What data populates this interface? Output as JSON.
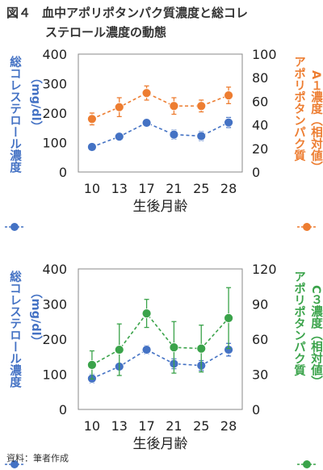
{
  "figure": {
    "number": "図４",
    "title_line1": "血中アポリポタンパク質濃度と総コレ",
    "title_line2": "ステロール濃度の動態",
    "source": "資料：筆者作成"
  },
  "colors": {
    "blue": "#4472c4",
    "orange": "#ed7d31",
    "green": "#3aa34a",
    "axis": "#888888",
    "text": "#222222"
  },
  "chart_data": [
    {
      "type": "line",
      "categories": [
        "10",
        "13",
        "17",
        "21",
        "25",
        "28"
      ],
      "xlabel": "生後月齢",
      "y_left": {
        "label": "総コレステロール濃度",
        "sub": "（mg/dl）",
        "lim": [
          0,
          400
        ],
        "ticks": [
          0,
          100,
          200,
          300,
          400
        ]
      },
      "y_right": {
        "label": "アポリポタンパク質",
        "label2": "A１濃度（相対値）",
        "lim": [
          0,
          100
        ],
        "ticks": [
          0,
          20,
          40,
          60,
          80,
          100
        ]
      },
      "series": [
        {
          "axis": "left",
          "color": "blue",
          "values": [
            85,
            120,
            167,
            127,
            122,
            168
          ],
          "err": [
            10,
            8,
            10,
            15,
            15,
            17
          ]
        },
        {
          "axis": "right",
          "color": "orange",
          "values": [
            45,
            55,
            67,
            56,
            56,
            65
          ],
          "err": [
            5,
            8,
            6,
            7,
            5,
            7
          ]
        }
      ]
    },
    {
      "type": "line",
      "categories": [
        "10",
        "13",
        "17",
        "21",
        "25",
        "28"
      ],
      "xlabel": "生後月齢",
      "y_left": {
        "label": "総コレステロール濃度",
        "sub": "（mg/dl）",
        "lim": [
          0,
          400
        ],
        "ticks": [
          0,
          100,
          200,
          300,
          400
        ]
      },
      "y_right": {
        "label": "アポリポタンパク質",
        "label2": "C３濃度（相対値）",
        "lim": [
          0,
          120
        ],
        "ticks": [
          0,
          30,
          60,
          90,
          120
        ]
      },
      "series": [
        {
          "axis": "left",
          "color": "blue",
          "values": [
            88,
            122,
            170,
            130,
            125,
            170
          ],
          "err": [
            12,
            10,
            12,
            14,
            14,
            18
          ]
        },
        {
          "axis": "right",
          "color": "green",
          "values": [
            38,
            51,
            82,
            53,
            52,
            78
          ],
          "err": [
            12,
            22,
            12,
            22,
            20,
            26
          ]
        }
      ]
    }
  ]
}
